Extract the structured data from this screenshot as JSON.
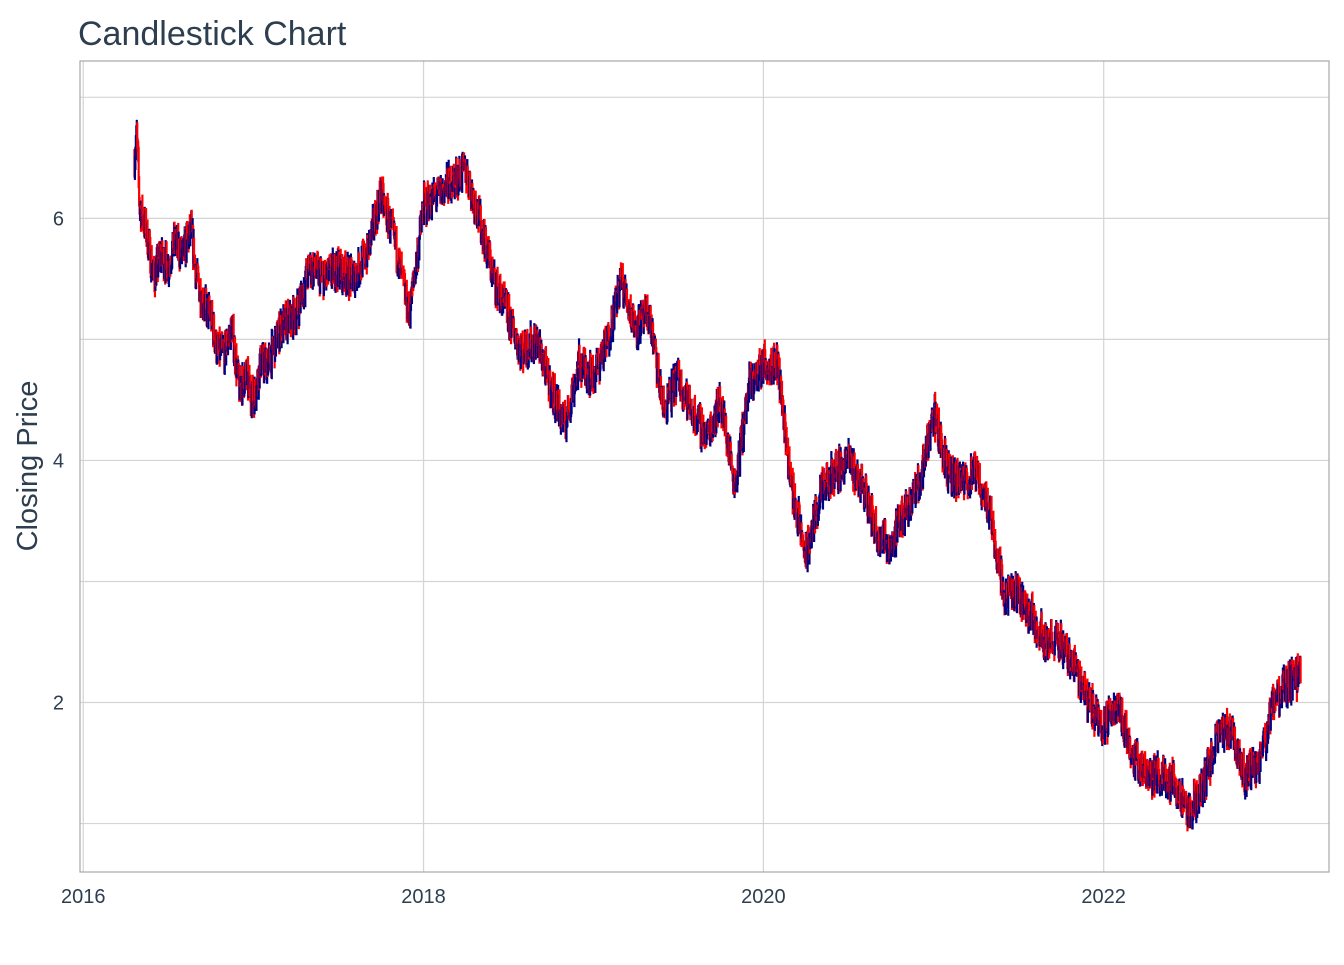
{
  "chart_data": {
    "type": "candlestick",
    "title": "Candlestick Chart",
    "xlabel": "",
    "ylabel": "Closing Price",
    "x_ticks": [
      "2016",
      "2018",
      "2020",
      "2022"
    ],
    "y_ticks": [
      "2",
      "4",
      "6"
    ],
    "xlim": [
      "2015-12-25",
      "2023-04-30"
    ],
    "ylim": [
      0.6,
      7.3
    ],
    "grid": true,
    "colors": {
      "up": "#000080",
      "down": "#ff0000",
      "grid": "#d4d4d4",
      "frame": "#a8a8a8",
      "text": "#2d3e50"
    },
    "close_path": [
      [
        "2016-04-20",
        6.5
      ],
      [
        "2016-04-25",
        6.7
      ],
      [
        "2016-05-01",
        6.1
      ],
      [
        "2016-05-15",
        5.9
      ],
      [
        "2016-06-01",
        5.5
      ],
      [
        "2016-06-15",
        5.7
      ],
      [
        "2016-07-01",
        5.6
      ],
      [
        "2016-07-15",
        5.8
      ],
      [
        "2016-08-01",
        5.7
      ],
      [
        "2016-08-20",
        5.9
      ],
      [
        "2016-09-01",
        5.5
      ],
      [
        "2016-09-15",
        5.3
      ],
      [
        "2016-10-01",
        5.2
      ],
      [
        "2016-10-15",
        4.9
      ],
      [
        "2016-11-01",
        4.9
      ],
      [
        "2016-11-15",
        5.1
      ],
      [
        "2016-12-01",
        4.6
      ],
      [
        "2016-12-15",
        4.7
      ],
      [
        "2017-01-01",
        4.5
      ],
      [
        "2017-01-15",
        4.8
      ],
      [
        "2017-02-01",
        4.8
      ],
      [
        "2017-03-01",
        5.1
      ],
      [
        "2017-04-01",
        5.2
      ],
      [
        "2017-05-01",
        5.6
      ],
      [
        "2017-06-01",
        5.5
      ],
      [
        "2017-07-01",
        5.6
      ],
      [
        "2017-08-01",
        5.5
      ],
      [
        "2017-09-01",
        5.7
      ],
      [
        "2017-10-01",
        6.2
      ],
      [
        "2017-11-01",
        5.8
      ],
      [
        "2017-12-01",
        5.2
      ],
      [
        "2017-12-15",
        5.6
      ],
      [
        "2018-01-01",
        6.1
      ],
      [
        "2018-02-01",
        6.2
      ],
      [
        "2018-03-01",
        6.3
      ],
      [
        "2018-04-01",
        6.4
      ],
      [
        "2018-05-01",
        6.0
      ],
      [
        "2018-06-01",
        5.5
      ],
      [
        "2018-07-01",
        5.2
      ],
      [
        "2018-08-01",
        4.9
      ],
      [
        "2018-09-01",
        5.0
      ],
      [
        "2018-10-01",
        4.6
      ],
      [
        "2018-11-01",
        4.3
      ],
      [
        "2018-12-01",
        4.8
      ],
      [
        "2019-01-01",
        4.7
      ],
      [
        "2019-02-01",
        5.0
      ],
      [
        "2019-03-01",
        5.5
      ],
      [
        "2019-04-01",
        5.1
      ],
      [
        "2019-05-01",
        5.2
      ],
      [
        "2019-06-01",
        4.4
      ],
      [
        "2019-07-01",
        4.7
      ],
      [
        "2019-08-01",
        4.4
      ],
      [
        "2019-09-01",
        4.2
      ],
      [
        "2019-10-01",
        4.5
      ],
      [
        "2019-11-01",
        3.8
      ],
      [
        "2019-12-01",
        4.6
      ],
      [
        "2020-01-01",
        4.8
      ],
      [
        "2020-02-01",
        4.8
      ],
      [
        "2020-03-01",
        3.8
      ],
      [
        "2020-04-01",
        3.2
      ],
      [
        "2020-05-01",
        3.7
      ],
      [
        "2020-06-01",
        3.9
      ],
      [
        "2020-07-01",
        4.0
      ],
      [
        "2020-08-01",
        3.8
      ],
      [
        "2020-09-01",
        3.4
      ],
      [
        "2020-10-01",
        3.3
      ],
      [
        "2020-11-01",
        3.6
      ],
      [
        "2020-12-01",
        3.8
      ],
      [
        "2021-01-01",
        4.4
      ],
      [
        "2021-02-01",
        3.9
      ],
      [
        "2021-03-01",
        3.8
      ],
      [
        "2021-04-01",
        3.9
      ],
      [
        "2021-05-01",
        3.6
      ],
      [
        "2021-06-01",
        2.9
      ],
      [
        "2021-07-01",
        2.9
      ],
      [
        "2021-08-01",
        2.7
      ],
      [
        "2021-09-01",
        2.5
      ],
      [
        "2021-10-01",
        2.5
      ],
      [
        "2021-11-01",
        2.3
      ],
      [
        "2021-12-01",
        2.0
      ],
      [
        "2022-01-01",
        1.8
      ],
      [
        "2022-02-01",
        2.0
      ],
      [
        "2022-03-01",
        1.6
      ],
      [
        "2022-04-01",
        1.4
      ],
      [
        "2022-05-01",
        1.4
      ],
      [
        "2022-06-01",
        1.35
      ],
      [
        "2022-07-01",
        1.05
      ],
      [
        "2022-08-01",
        1.3
      ],
      [
        "2022-09-01",
        1.7
      ],
      [
        "2022-10-01",
        1.8
      ],
      [
        "2022-11-01",
        1.4
      ],
      [
        "2022-12-01",
        1.5
      ],
      [
        "2023-01-01",
        2.0
      ],
      [
        "2023-01-20",
        2.1
      ],
      [
        "2023-02-15",
        2.2
      ],
      [
        "2023-03-01",
        2.25
      ]
    ]
  }
}
